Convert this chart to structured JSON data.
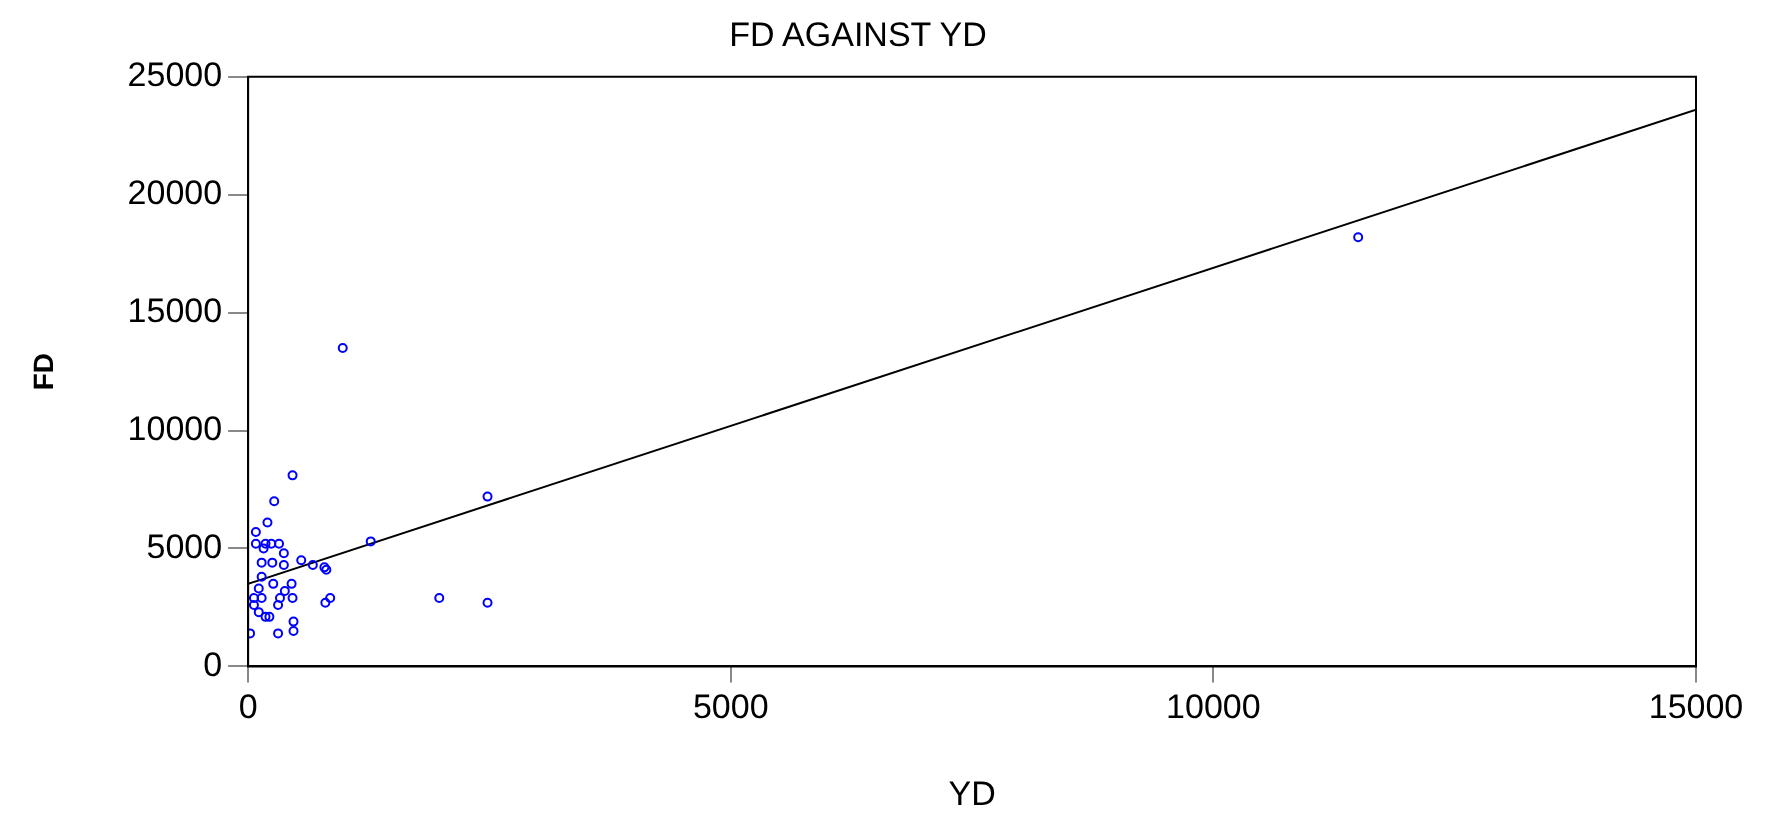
{
  "chart_data": {
    "type": "scatter",
    "title": "FD AGAINST YD",
    "xlabel": "YD",
    "ylabel": "FD",
    "xlim": [
      0,
      15000
    ],
    "xticks": [
      0,
      5000,
      10000,
      15000
    ],
    "ylim": [
      0,
      25000
    ],
    "yticks": [
      0,
      5000,
      10000,
      15000,
      20000,
      25000
    ],
    "grid": false,
    "legend": false,
    "series": [
      {
        "marker": "circle",
        "color": "#0000ff",
        "x": [
          980,
          460,
          2480,
          270,
          200,
          80,
          1270,
          80,
          180,
          240,
          320,
          160,
          370,
          140,
          250,
          550,
          370,
          670,
          790,
          810,
          140,
          110,
          260,
          450,
          380,
          60,
          140,
          330,
          460,
          850,
          800,
          1980,
          2480,
          60,
          310,
          110,
          180,
          220,
          470,
          470,
          20,
          310,
          11500
        ],
        "values": [
          13500,
          8100,
          7200,
          7000,
          6100,
          5700,
          5300,
          5200,
          5200,
          5200,
          5200,
          5000,
          4800,
          4400,
          4400,
          4500,
          4300,
          4300,
          4200,
          4100,
          3800,
          3300,
          3500,
          3500,
          3200,
          2900,
          2900,
          2900,
          2900,
          2900,
          2700,
          2900,
          2700,
          2600,
          2600,
          2300,
          2100,
          2100,
          1900,
          1500,
          1400,
          1400,
          18200
        ]
      },
      {
        "type": "line",
        "color": "#000000",
        "x": [
          0,
          15000
        ],
        "values": [
          3500,
          23600
        ]
      }
    ]
  }
}
